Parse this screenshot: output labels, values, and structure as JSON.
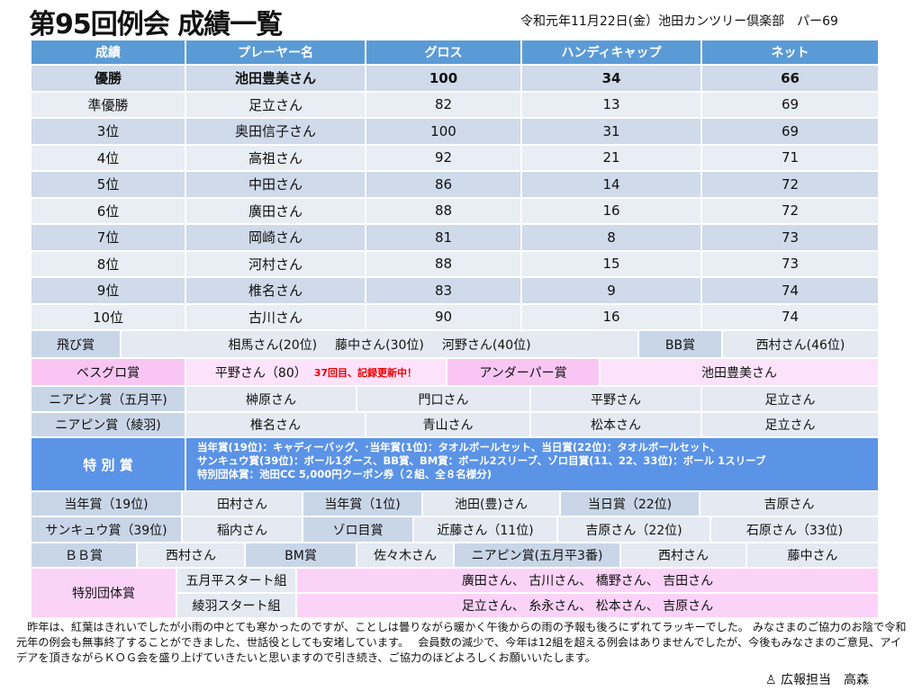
{
  "title": "第95回例会 成績一覧",
  "subtitle": "令和元年11月22日(金）池田カンツリー倶楽部　パー69",
  "results": {
    "headers": [
      "成績",
      "プレーヤー名",
      "グロス",
      "ハンディキャップ",
      "ネット"
    ],
    "rows": [
      [
        "優勝",
        "池田豊美さん",
        "100",
        "34",
        "66"
      ],
      [
        "準優勝",
        "足立さん",
        "82",
        "13",
        "69"
      ],
      [
        "3位",
        "奥田信子さん",
        "100",
        "31",
        "69"
      ],
      [
        "4位",
        "高祖さん",
        "92",
        "21",
        "71"
      ],
      [
        "5位",
        "中田さん",
        "86",
        "14",
        "72"
      ],
      [
        "6位",
        "廣田さん",
        "88",
        "16",
        "72"
      ],
      [
        "7位",
        "岡崎さん",
        "81",
        "8",
        "73"
      ],
      [
        "8位",
        "河村さん",
        "88",
        "15",
        "73"
      ],
      [
        "9位",
        "椎名さん",
        "83",
        "9",
        "74"
      ],
      [
        "10位",
        "古川さん",
        "90",
        "16",
        "74"
      ]
    ]
  },
  "awards": [
    [
      "飛び賞",
      [
        "相馬さん(20位)",
        "藤中さん(30位)",
        "河野さん(40位)"
      ],
      "BB賞",
      "西村さん(46位)"
    ],
    [
      "ベスグロ賞",
      {
        "text": "平野さん（80）",
        "note": "37回目、記録更新中！"
      },
      "アンダーパー賞",
      "池田豊美さん"
    ],
    [
      "ニアピン賞（五月平)",
      "榊原さん",
      "門口さん",
      "平野さん",
      "足立さん"
    ],
    [
      "ニアピン賞（綾羽)",
      "椎名さん",
      "青山さん",
      "松本さん",
      "足立さん"
    ],
    [
      "特 別 賞",
      [
        "当年賞(19位)：キャディーバッグ、･当年賞(1位)：タオルボールセット、当日賞(22位)：タオルボールセット、",
        "サンキュウ賞(39位)：ボール1ダース、BB賞、BM賞：ボール2スリーブ、ゾロ目賞(11、22、33位)：ボール 1スリーブ",
        "特別団体賞：池田CC 5,000円クーポン券（２組、全８名様分)"
      ]
    ],
    [
      "当年賞（19位)",
      "田村さん",
      "当年賞（1位)",
      "池田(豊)さん",
      "当日賞（22位)",
      "吉原さん"
    ],
    [
      "サンキュウ賞（39位)",
      "稲内さん",
      "ゾロ目賞",
      "近藤さん（11位)",
      "吉原さん（22位)",
      "石原さん（33位)"
    ],
    [
      "ＢＢ賞",
      "西村さん",
      "BM賞",
      "佐々木さん",
      "ニアピン賞(五月平3番)",
      "西村さん",
      "藤中さん"
    ]
  ],
  "group_award": {
    "label": "特別団体賞",
    "groups": [
      {
        "name": "五月平スタート組",
        "members": "廣田さん、 古川さん、 橋野さん、 吉田さん"
      },
      {
        "name": "綾羽スタート組",
        "members": "足立さん、 糸永さん、 松本さん、 吉原さん"
      }
    ]
  },
  "footer": "昨年は、紅葉はきれいでしたが小雨の中とても寒かったのですが、ことしは曇りながら暖かく午後からの雨の予報も後ろにずれてラッキーでした。 みなさまのご協力のお陰で令和元年の例会も無事終了することができました、世話役としても安堵しています。　 会員数の減少で、今年は12組を超える例会はありませんでしたが、今後もみなさまのご意見、アイデアを頂きながらＫＯＧ会を盛り上げていきたいと思いますので引き続き、ご協力のほどよろしくお願いいたします。",
  "signature": "広報担当　高森",
  "colors": {
    "header": "#5b9bd5",
    "label": "#c8d6e8",
    "cell": "#e4e9f2",
    "pink": "#f9c6f4",
    "special": "#5b93e6",
    "note": "#ee0000"
  }
}
